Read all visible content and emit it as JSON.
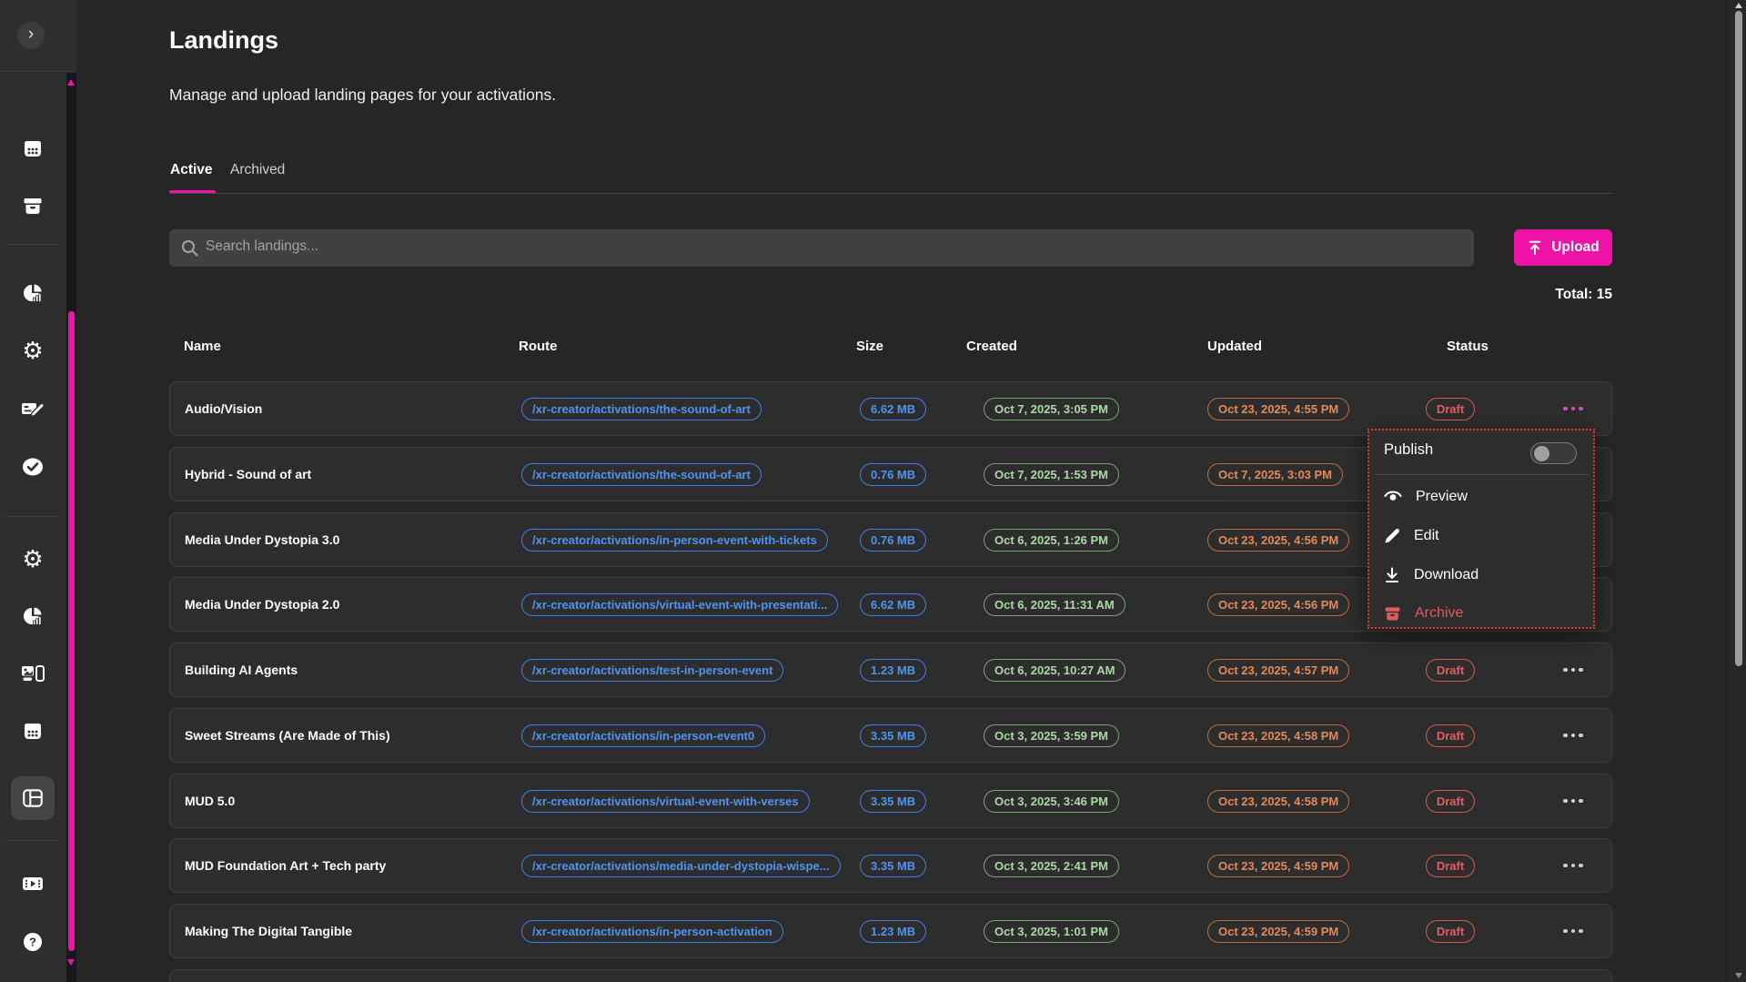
{
  "sidebar": {
    "collapse_glyph": "›",
    "items": [
      {
        "icon": "calendar"
      },
      {
        "icon": "archive"
      },
      {
        "divider": true
      },
      {
        "icon": "pie-chart"
      },
      {
        "icon": "gear"
      },
      {
        "icon": "card-edit"
      },
      {
        "icon": "check-circle"
      },
      {
        "divider": true
      },
      {
        "icon": "gear"
      },
      {
        "icon": "pie-chart"
      },
      {
        "icon": "image-panel"
      },
      {
        "icon": "calendar"
      },
      {
        "icon": "layout",
        "active": true
      },
      {
        "divider": true
      },
      {
        "icon": "film"
      },
      {
        "icon": "help"
      }
    ]
  },
  "header": {
    "title": "Landings",
    "subtitle": "Manage and upload landing pages for your activations."
  },
  "tabs": {
    "active": "Active",
    "archived": "Archived"
  },
  "search": {
    "placeholder": "Search landings..."
  },
  "toolbar": {
    "upload_label": "Upload",
    "total_label": "Total: 15"
  },
  "table": {
    "columns": [
      "Name",
      "Route",
      "Size",
      "Created",
      "Updated",
      "Status"
    ],
    "rows": [
      {
        "name": "Audio/Vision",
        "route": "/xr-creator/activations/the-sound-of-art",
        "size": "6.62 MB",
        "created": "Oct 7, 2025, 3:05 PM",
        "updated": "Oct 23, 2025, 4:55 PM",
        "status": "Draft",
        "menu_open": true
      },
      {
        "name": "Hybrid - Sound of art",
        "route": "/xr-creator/activations/the-sound-of-art",
        "size": "0.76 MB",
        "created": "Oct 7, 2025, 1:53 PM",
        "updated": "Oct 7, 2025, 3:03 PM",
        "status": null
      },
      {
        "name": "Media Under Dystopia 3.0",
        "route": "/xr-creator/activations/in-person-event-with-tickets",
        "size": "0.76 MB",
        "created": "Oct 6, 2025, 1:26 PM",
        "updated": "Oct 23, 2025, 4:56 PM",
        "status": null
      },
      {
        "name": "Media Under Dystopia 2.0",
        "route": "/xr-creator/activations/virtual-event-with-presentati...",
        "size": "6.62 MB",
        "created": "Oct 6, 2025, 11:31 AM",
        "updated": "Oct 23, 2025, 4:56 PM",
        "status": null
      },
      {
        "name": "Building AI Agents",
        "route": "/xr-creator/activations/test-in-person-event",
        "size": "1.23 MB",
        "created": "Oct 6, 2025, 10:27 AM",
        "updated": "Oct 23, 2025, 4:57 PM",
        "status": "Draft"
      },
      {
        "name": "Sweet Streams (Are Made of This)",
        "route": "/xr-creator/activations/in-person-event0",
        "size": "3.35 MB",
        "created": "Oct 3, 2025, 3:59 PM",
        "updated": "Oct 23, 2025, 4:58 PM",
        "status": "Draft"
      },
      {
        "name": "MUD 5.0",
        "route": "/xr-creator/activations/virtual-event-with-verses",
        "size": "3.35 MB",
        "created": "Oct 3, 2025, 3:46 PM",
        "updated": "Oct 23, 2025, 4:58 PM",
        "status": "Draft"
      },
      {
        "name": "MUD Foundation Art + Tech party",
        "route": "/xr-creator/activations/media-under-dystopia-wispe...",
        "size": "3.35 MB",
        "created": "Oct 3, 2025, 2:41 PM",
        "updated": "Oct 23, 2025, 4:59 PM",
        "status": "Draft"
      },
      {
        "name": "Making The Digital Tangible",
        "route": "/xr-creator/activations/in-person-activation",
        "size": "1.23 MB",
        "created": "Oct 3, 2025, 1:01 PM",
        "updated": "Oct 23, 2025, 4:59 PM",
        "status": "Draft"
      }
    ]
  },
  "menu": {
    "publish_label": "Publish",
    "publish_on": false,
    "items": [
      {
        "label": "Preview",
        "icon": "eye"
      },
      {
        "label": "Edit",
        "icon": "pencil"
      },
      {
        "label": "Download",
        "icon": "download"
      },
      {
        "label": "Archive",
        "icon": "archive",
        "danger": true
      }
    ]
  },
  "colors": {
    "accent_pink": "#ed15a8",
    "route_blue": "#4f94f0",
    "created_green": "#abdaa4",
    "updated_orange": "#e28a5a",
    "status_red": "#e05e5e"
  }
}
